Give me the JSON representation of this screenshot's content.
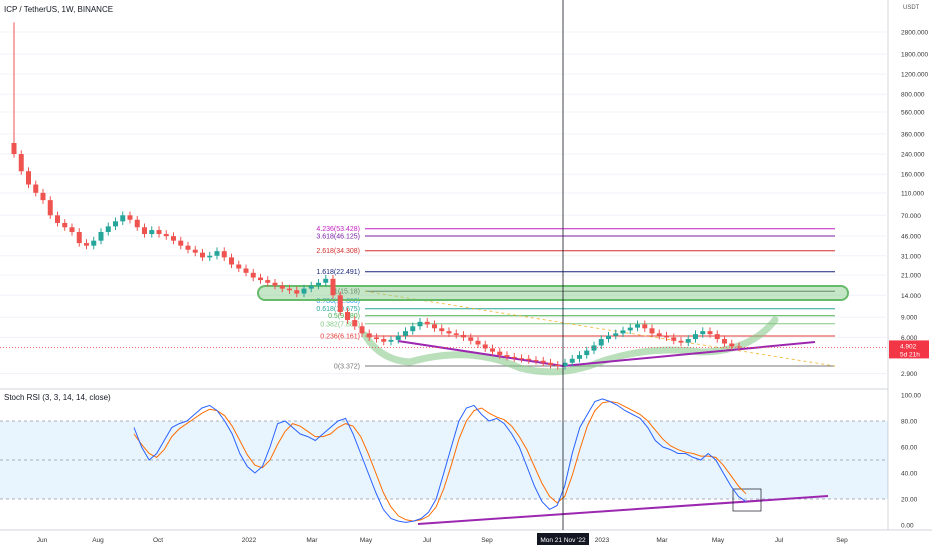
{
  "header": {
    "symbol_line": "ICP / TetherUS, 1W, BINANCE",
    "currency": "USDT",
    "rsi_title": "Stoch RSI (3, 3, 14, 14, close)"
  },
  "price_axis": {
    "type": "log",
    "ticks": [
      "2800.000",
      "1800.000",
      "1200.000",
      "800.000",
      "560.000",
      "360.000",
      "240.000",
      "160.000",
      "110.000",
      "70.000",
      "46.000",
      "31.000",
      "21.000",
      "14.000",
      "9.000",
      "6.000",
      "2.900"
    ],
    "tick_values": [
      2800,
      1800,
      1200,
      800,
      560,
      360,
      240,
      160,
      110,
      70,
      46,
      31,
      21,
      14,
      9,
      6,
      2.9
    ],
    "ylim": [
      2.5,
      4200
    ]
  },
  "current_price": {
    "label": "4.902",
    "countdown": "5d 21h",
    "value": 4.902,
    "color": "#f23645"
  },
  "time_axis": {
    "labels": [
      "Jun",
      "Aug",
      "Oct",
      "2022",
      "Mar",
      "May",
      "Jul",
      "Sep",
      "Mon 21 Nov '22",
      "2023",
      "Mar",
      "May",
      "Jul",
      "Sep"
    ],
    "crosshair_label": "Mon 21 Nov '22"
  },
  "fib_levels": [
    {
      "label": "4.236(53.428)",
      "value": 53.428,
      "color": "#c21ec2"
    },
    {
      "label": "3.618(46.125)",
      "value": 46.125,
      "color": "#7b1fa2"
    },
    {
      "label": "2.618(34.308)",
      "value": 34.308,
      "color": "#d32f2f"
    },
    {
      "label": "1.618(22.491)",
      "value": 22.491,
      "color": "#1a237e"
    },
    {
      "label": "1(15.18)",
      "value": 15.18,
      "color": "#555555"
    },
    {
      "label": "0.786(12.660)",
      "value": 12.66,
      "color": "#2196f3"
    },
    {
      "label": "0.618(10.675)",
      "value": 10.675,
      "color": "#26a69a"
    },
    {
      "label": "0.5(9.280)",
      "value": 9.28,
      "color": "#4caf50"
    },
    {
      "label": "0.382(7.886)",
      "value": 7.886,
      "color": "#81c784"
    },
    {
      "label": "0.236(6.161)",
      "value": 6.161,
      "color": "#e53935"
    },
    {
      "label": "0(3.372)",
      "value": 3.372,
      "color": "#777777"
    }
  ],
  "rsi_axis": {
    "ticks": [
      "100.00",
      "80.00",
      "60.00",
      "40.00",
      "20.00",
      "0.00"
    ],
    "tick_values": [
      100,
      80,
      60,
      40,
      20,
      0
    ],
    "band": [
      20,
      80
    ]
  },
  "chart_data": {
    "type": "line",
    "price": {
      "close": [
        240,
        170,
        130,
        110,
        95,
        70,
        60,
        55,
        50,
        40,
        38,
        42,
        50,
        56,
        62,
        70,
        64,
        55,
        48,
        52,
        48,
        46,
        42,
        38,
        35,
        33,
        30,
        31,
        34,
        30,
        26,
        24,
        22,
        20,
        19,
        18,
        17,
        16,
        15.5,
        14.5,
        16,
        17,
        18,
        19.5,
        14,
        10,
        8.5,
        7.5,
        6.5,
        6,
        5.8,
        5.5,
        5.7,
        6.2,
        6.8,
        7.5,
        8.2,
        7.8,
        7.2,
        6.8,
        6.5,
        6.3,
        6.0,
        5.6,
        5.2,
        4.8,
        4.5,
        4.2,
        4.05,
        3.95,
        3.9,
        3.8,
        3.75,
        3.6,
        3.45,
        3.372,
        3.6,
        3.9,
        4.2,
        4.6,
        5.1,
        5.8,
        6.2,
        6.5,
        6.9,
        7.3,
        7.8,
        7.2,
        6.5,
        6.2,
        6.0,
        5.6,
        5.4,
        5.8,
        6.4,
        6.8,
        6.4,
        5.8,
        5.3,
        5.0,
        4.902
      ]
    },
    "stoch_k": [
      75,
      60,
      50,
      55,
      65,
      75,
      78,
      80,
      85,
      90,
      92,
      88,
      80,
      70,
      55,
      45,
      40,
      45,
      60,
      78,
      80,
      75,
      70,
      68,
      65,
      70,
      75,
      80,
      82,
      70,
      55,
      40,
      25,
      12,
      5,
      3,
      2,
      3,
      5,
      10,
      20,
      40,
      60,
      80,
      90,
      92,
      85,
      80,
      82,
      78,
      70,
      60,
      45,
      30,
      18,
      12,
      15,
      30,
      55,
      75,
      85,
      95,
      97,
      95,
      92,
      88,
      85,
      82,
      75,
      65,
      60,
      58,
      55,
      55,
      52,
      50,
      55,
      50,
      40,
      30,
      22,
      18
    ],
    "stoch_d": [
      70,
      62,
      55,
      52,
      58,
      68,
      74,
      78,
      82,
      86,
      89,
      88,
      84,
      76,
      65,
      54,
      46,
      44,
      50,
      62,
      72,
      78,
      76,
      72,
      68,
      68,
      70,
      75,
      78,
      76,
      68,
      55,
      40,
      25,
      14,
      7,
      4,
      3,
      4,
      7,
      14,
      28,
      46,
      66,
      80,
      88,
      90,
      86,
      83,
      81,
      76,
      68,
      58,
      45,
      32,
      22,
      17,
      22,
      38,
      58,
      76,
      88,
      94,
      95,
      94,
      91,
      88,
      85,
      80,
      73,
      66,
      61,
      58,
      56,
      55,
      53,
      53,
      52,
      46,
      38,
      30,
      24
    ],
    "trendlines": [
      {
        "name": "price support",
        "from": 3.5,
        "to": 5.3,
        "color": "#9c27b0"
      },
      {
        "name": "rsi support",
        "from": 3,
        "to": 22,
        "color": "#9c27b0"
      }
    ]
  }
}
